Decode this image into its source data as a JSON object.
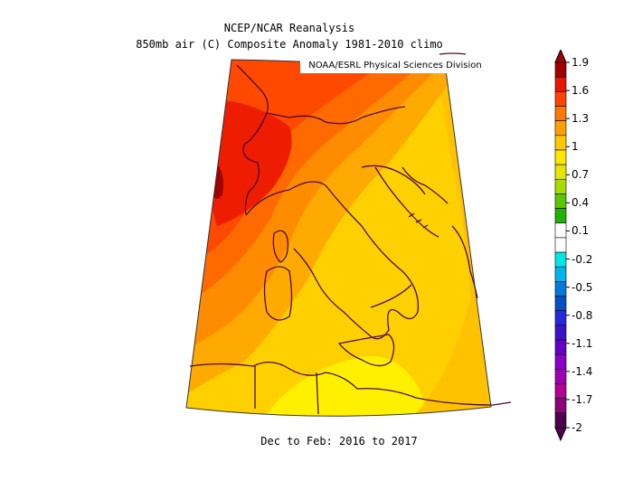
{
  "header": {
    "title_line1": "NCEP/NCAR Reanalysis",
    "title_line2": "850mb air (C) Composite Anomaly 1981-2010 climo",
    "credit": "NOAA/ESRL Physical Sciences Division"
  },
  "footer": {
    "period": "Dec to Feb: 2016 to 2017"
  },
  "map": {
    "region": "Italy",
    "variable": "850mb air temperature anomaly"
  },
  "colorbar": {
    "labels": [
      "1.9",
      "1.6",
      "1.3",
      "1",
      "0.7",
      "0.4",
      "0.1",
      "-0.2",
      "-0.5",
      "-0.8",
      "-1.1",
      "-1.4",
      "-1.7",
      "-2"
    ],
    "colors": [
      "#a00000",
      "#e81800",
      "#ff4400",
      "#ff7800",
      "#ffa000",
      "#ffc800",
      "#ffe600",
      "#e6e600",
      "#a8dc00",
      "#5ac800",
      "#20b400",
      "#ffffff",
      "#ffffff",
      "#00e6e6",
      "#00b4f0",
      "#0078dc",
      "#0050c8",
      "#2828dc",
      "#3c14c8",
      "#6400c8",
      "#8c00c8",
      "#a000b4",
      "#b40096",
      "#8c0078",
      "#500050"
    ]
  }
}
